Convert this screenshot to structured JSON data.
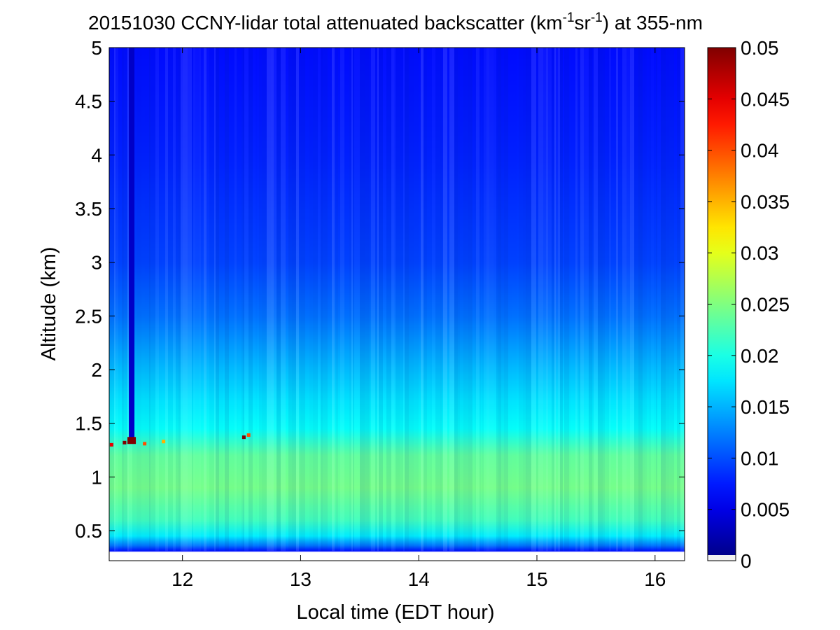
{
  "chart_data": {
    "type": "heatmap",
    "title": {
      "main": "20151030 CCNY-lidar total attenuated backscatter (km",
      "sup1": "-1",
      "mid": "sr",
      "sup2": "-1",
      "end": ") at 355-nm"
    },
    "xlabel": "Local time (EDT hour)",
    "ylabel": "Altitude (km)",
    "xlim": [
      11.38,
      16.25
    ],
    "ylim": [
      0.22,
      5.0
    ],
    "x_ticks": [
      12,
      13,
      14,
      15,
      16
    ],
    "y_ticks": [
      0.5,
      1,
      1.5,
      2,
      2.5,
      3,
      3.5,
      4,
      4.5,
      5
    ],
    "y_tick_labels": [
      "0.5",
      "1",
      "1.5",
      "2",
      "2.5",
      "3",
      "3.5",
      "4",
      "4.5",
      "5"
    ],
    "colorbar": {
      "colormap": "jet",
      "range": [
        0,
        0.05
      ],
      "ticks": [
        0,
        0.005,
        0.01,
        0.015,
        0.02,
        0.025,
        0.03,
        0.035,
        0.04,
        0.045,
        0.05
      ],
      "tick_labels": [
        "0",
        "0.005",
        "0.01",
        "0.015",
        "0.02",
        "0.025",
        "0.03",
        "0.035",
        "0.04",
        "0.045",
        "0.05"
      ]
    },
    "altitude_profile": [
      {
        "alt": 0.22,
        "value": -1
      },
      {
        "alt": 0.3,
        "value": -1
      },
      {
        "alt": 0.31,
        "value": 0.007
      },
      {
        "alt": 0.36,
        "value": 0.012
      },
      {
        "alt": 0.45,
        "value": 0.018
      },
      {
        "alt": 0.6,
        "value": 0.022
      },
      {
        "alt": 0.9,
        "value": 0.0245
      },
      {
        "alt": 1.2,
        "value": 0.0235
      },
      {
        "alt": 1.45,
        "value": 0.019
      },
      {
        "alt": 1.7,
        "value": 0.0175
      },
      {
        "alt": 2.0,
        "value": 0.0155
      },
      {
        "alt": 2.5,
        "value": 0.0118
      },
      {
        "alt": 3.0,
        "value": 0.0095
      },
      {
        "alt": 4.0,
        "value": 0.0078
      },
      {
        "alt": 5.0,
        "value": 0.0068
      }
    ],
    "features": [
      {
        "name": "dark vertical streak",
        "x": 11.57,
        "alt_range": [
          1.35,
          5.0
        ],
        "value": 0.0035
      },
      {
        "name": "cloud speck",
        "x": 11.57,
        "alt": 1.34,
        "value": 0.05
      },
      {
        "name": "cloud speck",
        "x": 11.4,
        "alt": 1.3,
        "value": 0.045
      },
      {
        "name": "cloud speck",
        "x": 11.51,
        "alt": 1.32,
        "value": 0.05
      },
      {
        "name": "cloud speck",
        "x": 11.68,
        "alt": 1.31,
        "value": 0.04
      },
      {
        "name": "cloud speck",
        "x": 11.84,
        "alt": 1.33,
        "value": 0.035
      },
      {
        "name": "cloud speck",
        "x": 12.52,
        "alt": 1.37,
        "value": 0.05
      },
      {
        "name": "cloud speck",
        "x": 12.56,
        "alt": 1.39,
        "value": 0.04
      }
    ]
  }
}
